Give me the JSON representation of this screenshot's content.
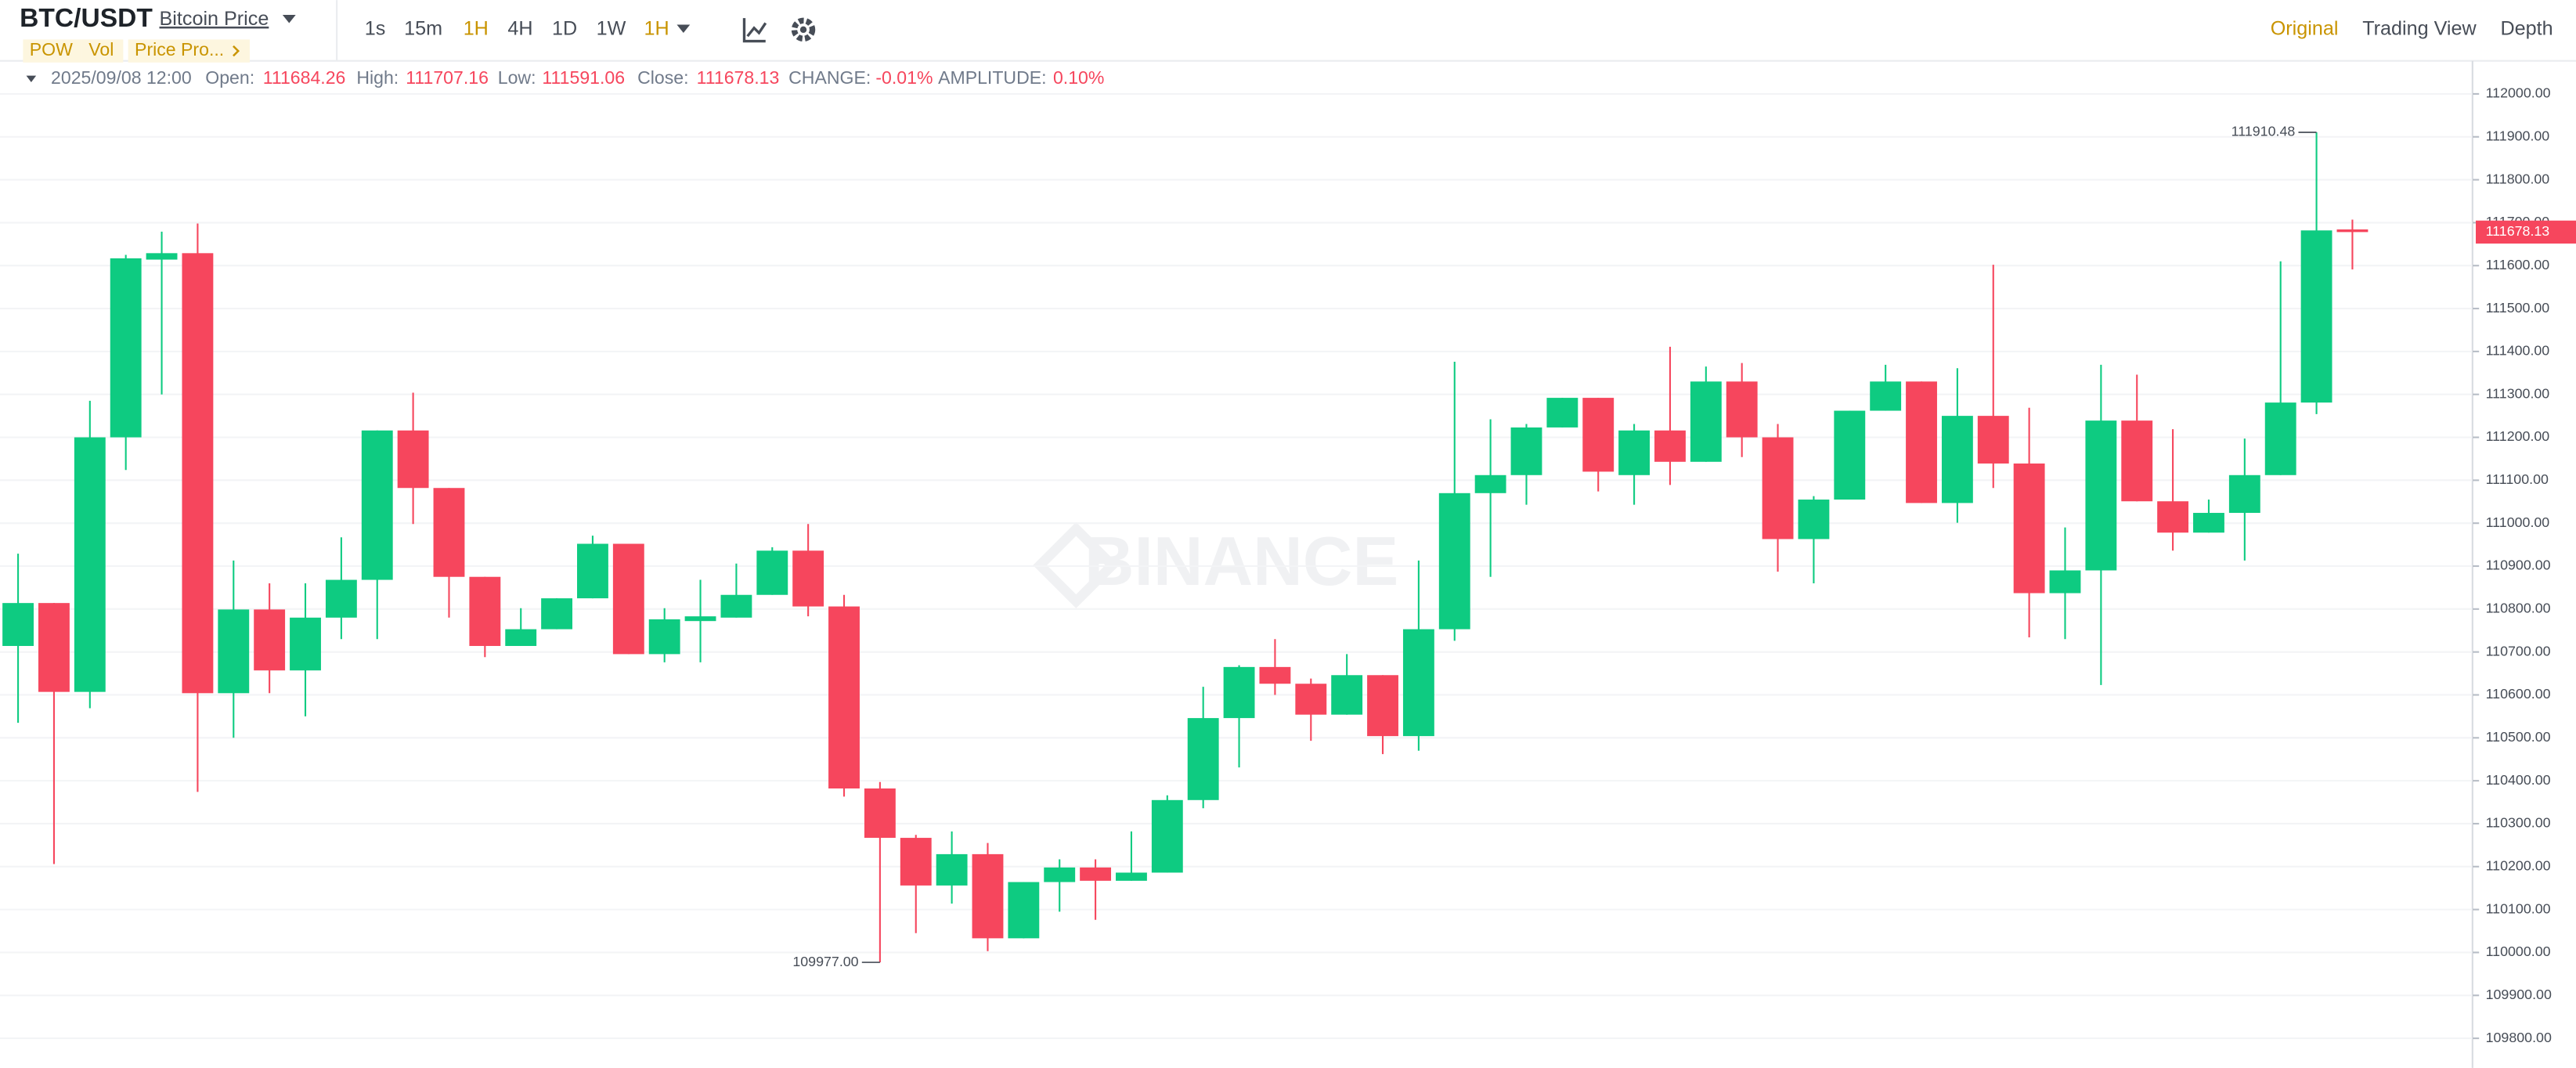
{
  "toolbar": {
    "symbol": "BTC/USDT",
    "name": "Bitcoin Price",
    "intervals": [
      "1s",
      "15m",
      "1H",
      "4H",
      "1D",
      "1W"
    ],
    "selected_interval": "1H",
    "views": [
      "Original",
      "Trading View",
      "Depth"
    ]
  },
  "indicators": [
    "POW",
    "Vol",
    "Price Pro..."
  ],
  "legend": {
    "time": "2025/09/08 12:00",
    "open_label": "Open:",
    "high_label": "High:",
    "low_label": "Low:",
    "close_label": "Close:",
    "change_label": "CHANGE:",
    "change": "-0.01%",
    "amplitude_label": "AMPLITUDE:",
    "amplitude": "0.10%"
  },
  "watermark": "BINANCE",
  "chart_data": {
    "type": "candlestick",
    "open": [
      110714,
      110814,
      110607,
      111200,
      111614,
      111629,
      110604,
      110799,
      110657,
      110780,
      110868,
      111216,
      111082,
      110875,
      110714,
      110753,
      110825,
      110952,
      110695,
      110772,
      110780,
      110833,
      110936,
      110806,
      110382,
      110267,
      110156,
      110229,
      110033,
      110164,
      110198,
      110167,
      110186,
      110355,
      110546,
      110665,
      110626,
      110554,
      110646,
      110504,
      110753,
      111070,
      111112,
      111223,
      111292,
      111112,
      111216,
      111143,
      111330,
      111200,
      110963,
      111055,
      111262,
      111330,
      111047,
      111250,
      111139,
      110837,
      110890,
      111239,
      111051,
      110978,
      111024,
      111112,
      111281,
      111684.26
    ],
    "high": [
      110929,
      110814,
      111285,
      111625,
      111679,
      111698,
      110913,
      110860,
      110860,
      110967,
      111216,
      111304,
      111082,
      110875,
      110802,
      110825,
      110971,
      110952,
      110802,
      110868,
      110906,
      110944,
      110998,
      110833,
      110397,
      110274,
      110282,
      110255,
      110164,
      110217,
      110217,
      110282,
      110366,
      110619,
      110669,
      110730,
      110638,
      110695,
      110646,
      110913,
      111376,
      111242,
      111231,
      111292,
      111292,
      111231,
      111411,
      111365,
      111373,
      111231,
      111063,
      111262,
      111369,
      111330,
      111361,
      111602,
      111269,
      110990,
      111369,
      111346,
      111219,
      111055,
      111197,
      111610,
      111910.48,
      111707.16
    ],
    "low": [
      110535,
      110206,
      110569,
      111124,
      111300,
      110374,
      110500,
      110604,
      110550,
      110730,
      110730,
      110998,
      110780,
      110688,
      110714,
      110753,
      110825,
      110695,
      110676,
      110676,
      110780,
      110833,
      110783,
      110363,
      109977,
      110045,
      110114,
      110003,
      110033,
      110095,
      110076,
      110167,
      110186,
      110336,
      110431,
      110600,
      110493,
      110554,
      110462,
      110470,
      110726,
      110875,
      111043,
      111223,
      111074,
      111043,
      111089,
      111143,
      111154,
      110887,
      110860,
      111055,
      111262,
      111047,
      111001,
      111082,
      110734,
      110730,
      110623,
      111051,
      110936,
      110978,
      110913,
      111112,
      111254,
      111591.06
    ],
    "close": [
      110814,
      110607,
      111200,
      111617,
      111629,
      110604,
      110799,
      110657,
      110780,
      110868,
      111216,
      111082,
      110875,
      110714,
      110753,
      110825,
      110952,
      110695,
      110776,
      110783,
      110833,
      110936,
      110806,
      110382,
      110267,
      110156,
      110229,
      110033,
      110164,
      110198,
      110167,
      110186,
      110355,
      110546,
      110665,
      110626,
      110554,
      110646,
      110504,
      110753,
      111070,
      111112,
      111223,
      111292,
      111120,
      111216,
      111143,
      111330,
      111200,
      110963,
      111055,
      111262,
      111330,
      111047,
      111250,
      111139,
      110837,
      110890,
      111239,
      111051,
      110978,
      111024,
      111112,
      111281,
      111682,
      111678.13
    ],
    "up_color": "#0ecb81",
    "down_color": "#f6465d",
    "ylim": [
      109731,
      112077
    ],
    "yticks": [
      {
        "value": 109800,
        "label": "109800.00"
      },
      {
        "value": 109900,
        "label": "109900.00"
      },
      {
        "value": 110000,
        "label": "110000.00"
      },
      {
        "value": 110100,
        "label": "110100.00"
      },
      {
        "value": 110200,
        "label": "110200.00"
      },
      {
        "value": 110300,
        "label": "110300.00"
      },
      {
        "value": 110400,
        "label": "110400.00"
      },
      {
        "value": 110500,
        "label": "110500.00"
      },
      {
        "value": 110600,
        "label": "110600.00"
      },
      {
        "value": 110700,
        "label": "110700.00"
      },
      {
        "value": 110800,
        "label": "110800.00"
      },
      {
        "value": 110900,
        "label": "110900.00"
      },
      {
        "value": 111000,
        "label": "111000.00"
      },
      {
        "value": 111100,
        "label": "111100.00"
      },
      {
        "value": 111200,
        "label": "111200.00"
      },
      {
        "value": 111300,
        "label": "111300.00"
      },
      {
        "value": 111400,
        "label": "111400.00"
      },
      {
        "value": 111500,
        "label": "111500.00"
      },
      {
        "value": 111600,
        "label": "111600.00"
      },
      {
        "value": 111700,
        "label": "111700.00"
      },
      {
        "value": 111800,
        "label": "111800.00"
      },
      {
        "value": 111900,
        "label": "111900.00"
      },
      {
        "value": 112000,
        "label": "112000.00"
      }
    ],
    "grid": true,
    "annotations": [
      111910.48,
      {
        "value": 109977,
        "label": "109977.00"
      }
    ]
  }
}
